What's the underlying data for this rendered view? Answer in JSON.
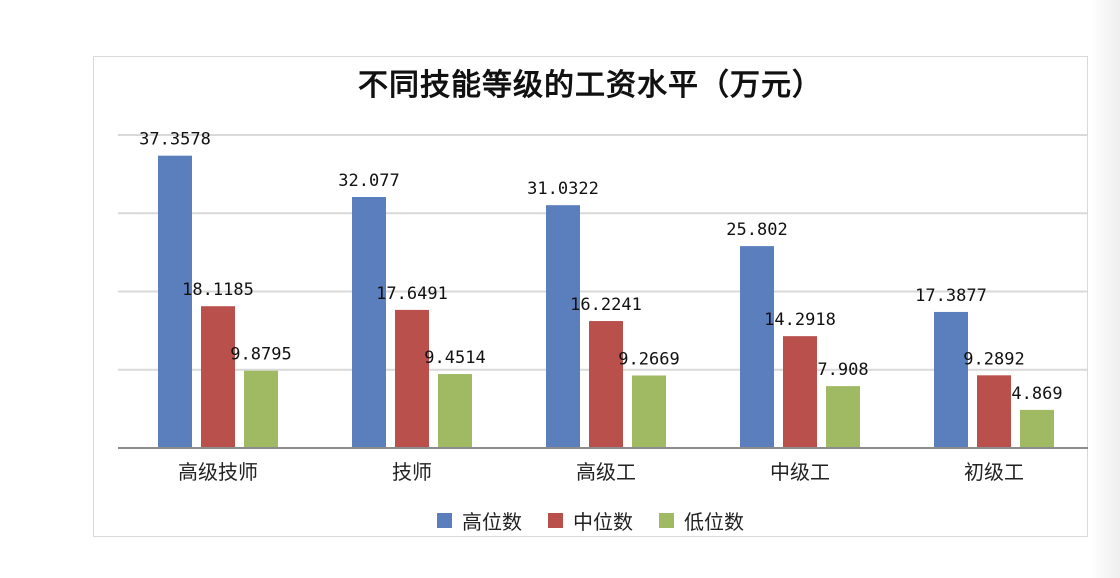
{
  "chart_data": {
    "type": "bar",
    "title": "不同技能等级的工资水平（万元）",
    "categories": [
      "高级技师",
      "技师",
      "高级工",
      "中级工",
      "初级工"
    ],
    "series": [
      {
        "name": "高位数",
        "color": "#5b7fbd",
        "values": [
          37.3578,
          32.077,
          31.0322,
          25.802,
          17.3877
        ],
        "labels": [
          "37.3578",
          "32.077",
          "31.0322",
          "25.802",
          "17.3877"
        ]
      },
      {
        "name": "中位数",
        "color": "#b9504c",
        "values": [
          18.1185,
          17.6491,
          16.2241,
          14.2918,
          9.2892
        ],
        "labels": [
          "18.1185",
          "17.6491",
          "16.2241",
          "14.2918",
          "9.2892"
        ]
      },
      {
        "name": "低位数",
        "color": "#9fba63",
        "values": [
          9.8795,
          9.4514,
          9.2669,
          7.908,
          4.869
        ],
        "labels": [
          "9.8795",
          "9.4514",
          "9.2669",
          "7.908",
          "4.869"
        ]
      }
    ],
    "ylim": [
      0,
      40
    ],
    "gridlines": [
      10,
      20,
      30,
      40
    ],
    "y_tick_labels_shown": false,
    "legend_position": "bottom"
  }
}
